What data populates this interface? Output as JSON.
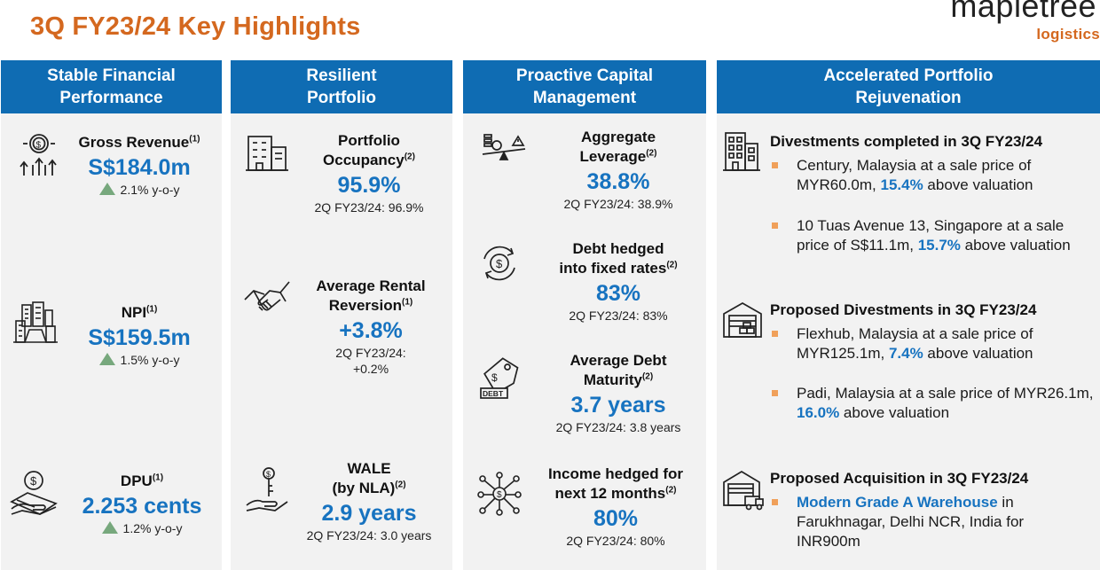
{
  "title": "3Q FY23/24 Key Highlights",
  "logo": {
    "word": "mapletree",
    "sub": "logistics"
  },
  "colors": {
    "header_blue": "#0f6cb3",
    "value_blue": "#1773c0",
    "title_orange": "#d4681f",
    "up_green": "#77a87d",
    "bullet_orange": "#f0a05a"
  },
  "columns": [
    {
      "header": "Stable Financial Performance",
      "items": [
        {
          "icon": "dollar-coin-arrows-icon",
          "label": "Gross Revenue",
          "note": "(1)",
          "value": "S$184.0m",
          "change": "2.1% y-o-y"
        },
        {
          "icon": "city-buildings-icon",
          "label": "NPI",
          "note": "(1)",
          "value": "S$159.5m",
          "change": "1.5% y-o-y"
        },
        {
          "icon": "money-hand-icon",
          "label": "DPU",
          "note": "(1)",
          "value": "2.253 cents",
          "change": "1.2% y-o-y"
        }
      ]
    },
    {
      "header": "Resilient Portfolio",
      "items": [
        {
          "icon": "office-building-icon",
          "label1": "Portfolio",
          "label2": "Occupancy",
          "note": "(2)",
          "value": "95.9%",
          "prior": "2Q FY23/24: 96.9%"
        },
        {
          "icon": "handshake-icon",
          "label1": "Average Rental",
          "label2": "Reversion",
          "note": "(1)",
          "value": "+3.8%",
          "prior1": "2Q FY23/24:",
          "prior2": "+0.2%"
        },
        {
          "icon": "hand-key-icon",
          "label1": "WALE",
          "label2": "(by NLA)",
          "note": "(2)",
          "value": "2.9 years",
          "prior": "2Q FY23/24: 3.0 years"
        }
      ]
    },
    {
      "header": "Proactive Capital Management",
      "items": [
        {
          "icon": "balance-scale-icon",
          "label1": "Aggregate",
          "label2": "Leverage",
          "note": "(2)",
          "value": "38.8%",
          "prior": "2Q FY23/24: 38.9%"
        },
        {
          "icon": "dollar-cycle-icon",
          "label1": "Debt hedged",
          "label2": "into fixed rates",
          "note": "(2)",
          "value": "83%",
          "prior": "2Q FY23/24: 83%"
        },
        {
          "icon": "debt-tag-icon",
          "label1": "Average Debt",
          "label2": "Maturity",
          "note": "(2)",
          "value": "3.7 years",
          "prior": "2Q FY23/24: 3.8 years"
        },
        {
          "icon": "dollar-network-icon",
          "label1": "Income hedged for",
          "label2": "next 12 months",
          "note": "(2)",
          "value": "80%",
          "prior": "2Q FY23/24: 80%"
        }
      ]
    },
    {
      "header": "Accelerated Portfolio Rejuvenation",
      "sections": [
        {
          "icon": "buildings-icon",
          "heading": "Divestments completed in 3Q FY23/24",
          "bullets": [
            {
              "pre": "Century, Malaysia at a sale price of MYR60.0m, ",
              "hl": "15.4%",
              "post": " above valuation"
            },
            {
              "pre": "10 Tuas Avenue 13, Singapore at a sale price of S$11.1m, ",
              "hl": "15.7%",
              "post": " above valuation"
            }
          ]
        },
        {
          "icon": "warehouse-icon",
          "heading": "Proposed Divestments in 3Q FY23/24",
          "bullets": [
            {
              "pre": "Flexhub, Malaysia at a sale price of MYR125.1m, ",
              "hl": "7.4%",
              "post": " above valuation"
            },
            {
              "pre": "Padi, Malaysia at a sale price of MYR26.1m, ",
              "hl": "16.0%",
              "post": " above valuation"
            }
          ]
        },
        {
          "icon": "warehouse-truck-icon",
          "heading": "Proposed Acquisition in 3Q FY23/24",
          "bullets": [
            {
              "hl_first": "Modern Grade A Warehouse",
              "post": " in Farukhnagar, Delhi NCR, India for INR900m"
            }
          ]
        }
      ]
    }
  ]
}
